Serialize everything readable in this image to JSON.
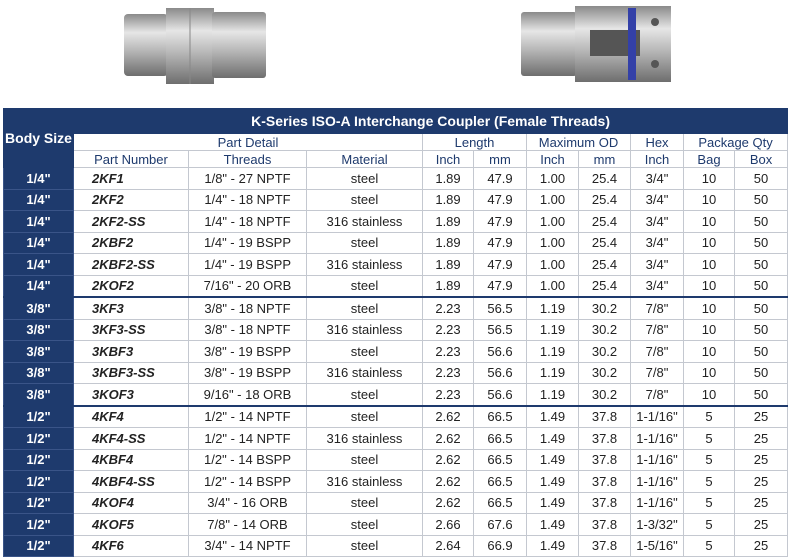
{
  "table": {
    "title": "K-Series ISO-A Interchange Coupler (Female Threads)",
    "header": {
      "body_size": "Body Size",
      "groups": [
        "Part Detail",
        "Length",
        "Maximum OD",
        "Hex",
        "Package Qty"
      ],
      "columns": [
        "Part Number",
        "Threads",
        "Material",
        "Inch",
        "mm",
        "Inch",
        "mm",
        "Inch",
        "Bag",
        "Box"
      ]
    },
    "rows": [
      [
        "1/4\"",
        "2KF1",
        "1/8\" - 27 NPTF",
        "steel",
        "1.89",
        "47.9",
        "1.00",
        "25.4",
        "3/4\"",
        "10",
        "50"
      ],
      [
        "1/4\"",
        "2KF2",
        "1/4\" - 18 NPTF",
        "steel",
        "1.89",
        "47.9",
        "1.00",
        "25.4",
        "3/4\"",
        "10",
        "50"
      ],
      [
        "1/4\"",
        "2KF2-SS",
        "1/4\" - 18 NPTF",
        "316 stainless",
        "1.89",
        "47.9",
        "1.00",
        "25.4",
        "3/4\"",
        "10",
        "50"
      ],
      [
        "1/4\"",
        "2KBF2",
        "1/4\" - 19 BSPP",
        "steel",
        "1.89",
        "47.9",
        "1.00",
        "25.4",
        "3/4\"",
        "10",
        "50"
      ],
      [
        "1/4\"",
        "2KBF2-SS",
        "1/4\" - 19 BSPP",
        "316 stainless",
        "1.89",
        "47.9",
        "1.00",
        "25.4",
        "3/4\"",
        "10",
        "50"
      ],
      [
        "1/4\"",
        "2KOF2",
        "7/16\" - 20 ORB",
        "steel",
        "1.89",
        "47.9",
        "1.00",
        "25.4",
        "3/4\"",
        "10",
        "50"
      ],
      [
        "3/8\"",
        "3KF3",
        "3/8\" - 18 NPTF",
        "steel",
        "2.23",
        "56.5",
        "1.19",
        "30.2",
        "7/8\"",
        "10",
        "50"
      ],
      [
        "3/8\"",
        "3KF3-SS",
        "3/8\" - 18 NPTF",
        "316 stainless",
        "2.23",
        "56.5",
        "1.19",
        "30.2",
        "7/8\"",
        "10",
        "50"
      ],
      [
        "3/8\"",
        "3KBF3",
        "3/8\" - 19 BSPP",
        "steel",
        "2.23",
        "56.6",
        "1.19",
        "30.2",
        "7/8\"",
        "10",
        "50"
      ],
      [
        "3/8\"",
        "3KBF3-SS",
        "3/8\" - 19 BSPP",
        "316 stainless",
        "2.23",
        "56.6",
        "1.19",
        "30.2",
        "7/8\"",
        "10",
        "50"
      ],
      [
        "3/8\"",
        "3KOF3",
        "9/16\" - 18 ORB",
        "steel",
        "2.23",
        "56.6",
        "1.19",
        "30.2",
        "7/8\"",
        "10",
        "50"
      ],
      [
        "1/2\"",
        "4KF4",
        "1/2\" - 14 NPTF",
        "steel",
        "2.62",
        "66.5",
        "1.49",
        "37.8",
        "1-1/16\"",
        "5",
        "25"
      ],
      [
        "1/2\"",
        "4KF4-SS",
        "1/2\" - 14 NPTF",
        "316 stainless",
        "2.62",
        "66.5",
        "1.49",
        "37.8",
        "1-1/16\"",
        "5",
        "25"
      ],
      [
        "1/2\"",
        "4KBF4",
        "1/2\" - 14 BSPP",
        "steel",
        "2.62",
        "66.5",
        "1.49",
        "37.8",
        "1-1/16\"",
        "5",
        "25"
      ],
      [
        "1/2\"",
        "4KBF4-SS",
        "1/2\" - 14 BSPP",
        "316 stainless",
        "2.62",
        "66.5",
        "1.49",
        "37.8",
        "1-1/16\"",
        "5",
        "25"
      ],
      [
        "1/2\"",
        "4KOF4",
        "3/4\" - 16 ORB",
        "steel",
        "2.62",
        "66.5",
        "1.49",
        "37.8",
        "1-1/16\"",
        "5",
        "25"
      ],
      [
        "1/2\"",
        "4KOF5",
        "7/8\" - 14 ORB",
        "steel",
        "2.66",
        "67.6",
        "1.49",
        "37.8",
        "1-3/32\"",
        "5",
        "25"
      ],
      [
        "1/2\"",
        "4KF6",
        "3/4\" - 14 NPTF",
        "steel",
        "2.64",
        "66.9",
        "1.49",
        "37.8",
        "1-5/16\"",
        "5",
        "25"
      ]
    ]
  }
}
